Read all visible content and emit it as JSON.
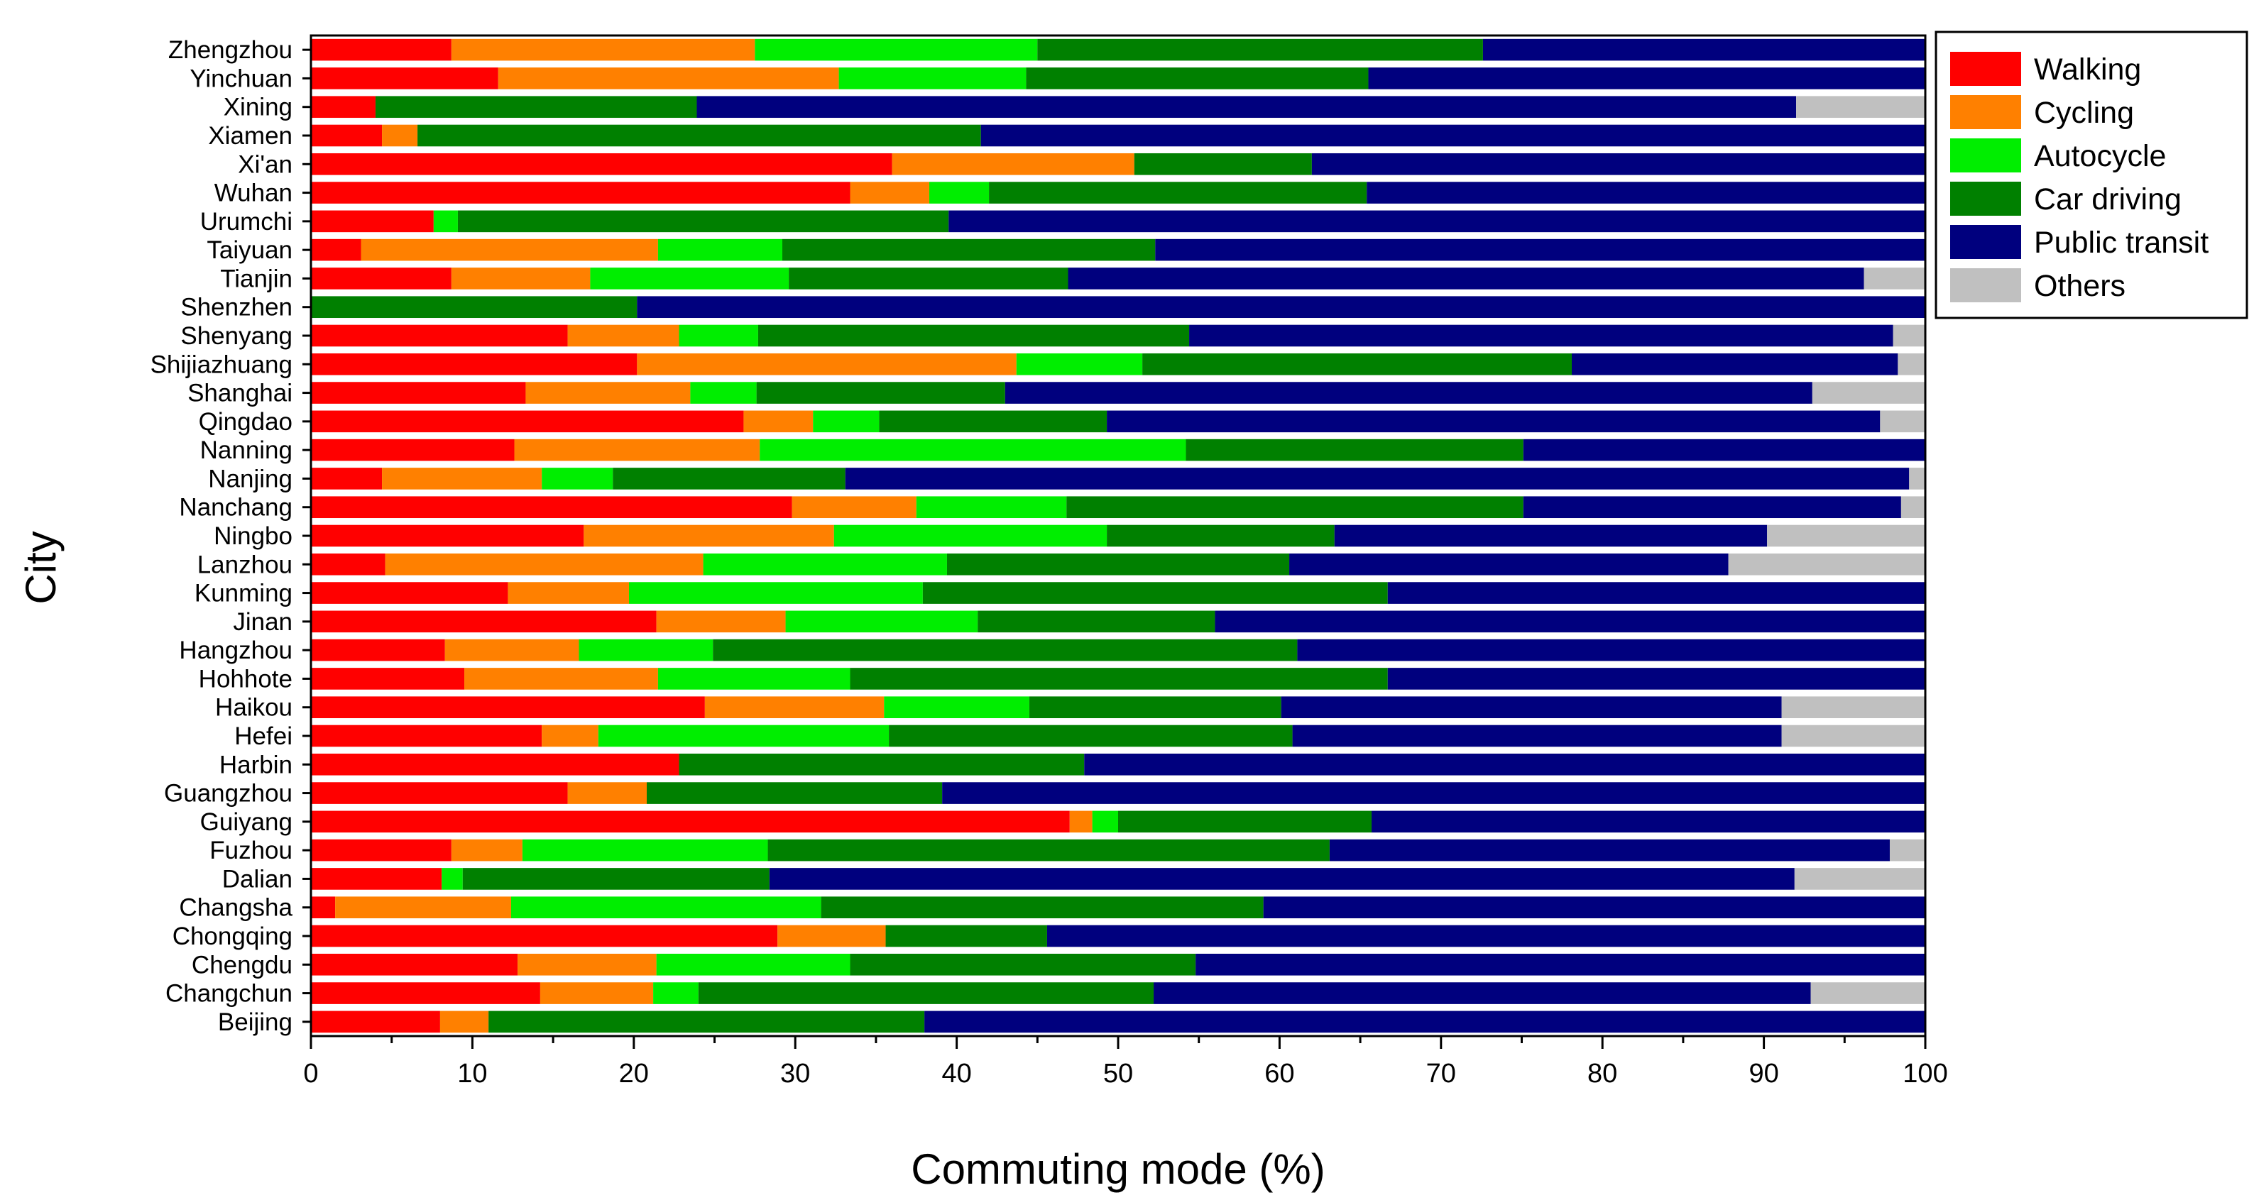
{
  "chart_data": {
    "type": "bar",
    "orientation": "horizontal",
    "stacked": true,
    "xlabel": "Commuting mode (%)",
    "ylabel": "City",
    "xlim": [
      0,
      100
    ],
    "x_ticks": [
      "0",
      "10",
      "20",
      "30",
      "40",
      "50",
      "60",
      "70",
      "80",
      "90",
      "100"
    ],
    "grid": false,
    "legend_position": "top-right",
    "categories": [
      "Zhengzhou",
      "Yinchuan",
      "Xining",
      "Xiamen",
      "Xi'an",
      "Wuhan",
      "Urumchi",
      "Taiyuan",
      "Tianjin",
      "Shenzhen",
      "Shenyang",
      "Shijiazhuang",
      "Shanghai",
      "Qingdao",
      "Nanning",
      "Nanjing",
      "Nanchang",
      "Ningbo",
      "Lanzhou",
      "Kunming",
      "Jinan",
      "Hangzhou",
      "Hohhote",
      "Haikou",
      "Hefei",
      "Harbin",
      "Guangzhou",
      "Guiyang",
      "Fuzhou",
      "Dalian",
      "Changsha",
      "Chongqing",
      "Chengdu",
      "Changchun",
      "Beijing"
    ],
    "series": [
      {
        "name": "Walking",
        "color": "#ff0000",
        "values": [
          8.7,
          11.6,
          4.0,
          4.4,
          36.0,
          33.4,
          7.6,
          3.1,
          8.7,
          0.0,
          15.9,
          20.2,
          13.3,
          26.8,
          12.6,
          4.4,
          29.8,
          16.9,
          4.6,
          12.2,
          21.4,
          8.3,
          9.5,
          24.4,
          14.3,
          22.8,
          15.9,
          47.0,
          8.7,
          8.1,
          1.5,
          28.9,
          12.8,
          14.2,
          8.0
        ]
      },
      {
        "name": "Cycling",
        "color": "#ff8000",
        "values": [
          18.8,
          21.1,
          0.0,
          2.2,
          15.0,
          4.9,
          0.0,
          18.4,
          8.6,
          0.0,
          6.9,
          23.5,
          10.2,
          4.3,
          15.2,
          9.9,
          7.7,
          15.5,
          19.7,
          7.5,
          8.0,
          8.3,
          12.0,
          11.1,
          3.5,
          0.0,
          4.9,
          1.4,
          4.4,
          0.0,
          10.9,
          6.7,
          8.6,
          7.0,
          3.0
        ]
      },
      {
        "name": "Autocycle",
        "color": "#00ee00",
        "values": [
          17.5,
          11.6,
          0.0,
          0.0,
          0.0,
          3.7,
          1.5,
          7.7,
          12.3,
          0.0,
          4.9,
          7.8,
          4.1,
          4.1,
          26.4,
          4.4,
          9.3,
          16.9,
          15.1,
          18.2,
          11.9,
          8.3,
          11.9,
          9.0,
          18.0,
          0.0,
          0.0,
          1.6,
          15.2,
          1.3,
          19.2,
          0.0,
          12.0,
          2.8,
          0.0
        ]
      },
      {
        "name": "Car driving",
        "color": "#008000",
        "values": [
          27.6,
          21.2,
          19.9,
          34.9,
          11.0,
          23.4,
          30.4,
          23.1,
          17.3,
          20.2,
          26.7,
          26.6,
          15.4,
          14.1,
          20.9,
          14.4,
          28.3,
          14.1,
          21.2,
          28.8,
          14.7,
          36.2,
          33.3,
          15.6,
          25.0,
          25.1,
          18.3,
          15.7,
          34.8,
          19.0,
          27.4,
          10.0,
          21.4,
          28.2,
          27.0
        ]
      },
      {
        "name": "Public transit",
        "color": "#00007e",
        "values": [
          27.4,
          34.5,
          68.1,
          58.5,
          38.0,
          34.6,
          60.5,
          47.7,
          49.3,
          79.8,
          43.6,
          20.2,
          50.0,
          47.9,
          24.9,
          65.9,
          23.4,
          26.8,
          27.2,
          33.3,
          44.0,
          38.9,
          33.3,
          31.0,
          30.3,
          52.1,
          60.9,
          34.3,
          34.7,
          63.5,
          41.0,
          54.4,
          45.2,
          40.7,
          62.0
        ]
      },
      {
        "name": "Others",
        "color": "#c0c0c0",
        "values": [
          0.0,
          0.0,
          8.0,
          0.0,
          0.0,
          0.0,
          0.0,
          0.0,
          3.8,
          0.0,
          2.0,
          1.7,
          7.0,
          2.8,
          0.0,
          1.0,
          1.5,
          9.8,
          12.2,
          0.0,
          0.0,
          0.0,
          0.0,
          8.9,
          8.9,
          0.0,
          0.0,
          0.0,
          2.2,
          8.1,
          0.0,
          0.0,
          0.0,
          7.1,
          0.0
        ]
      }
    ]
  }
}
